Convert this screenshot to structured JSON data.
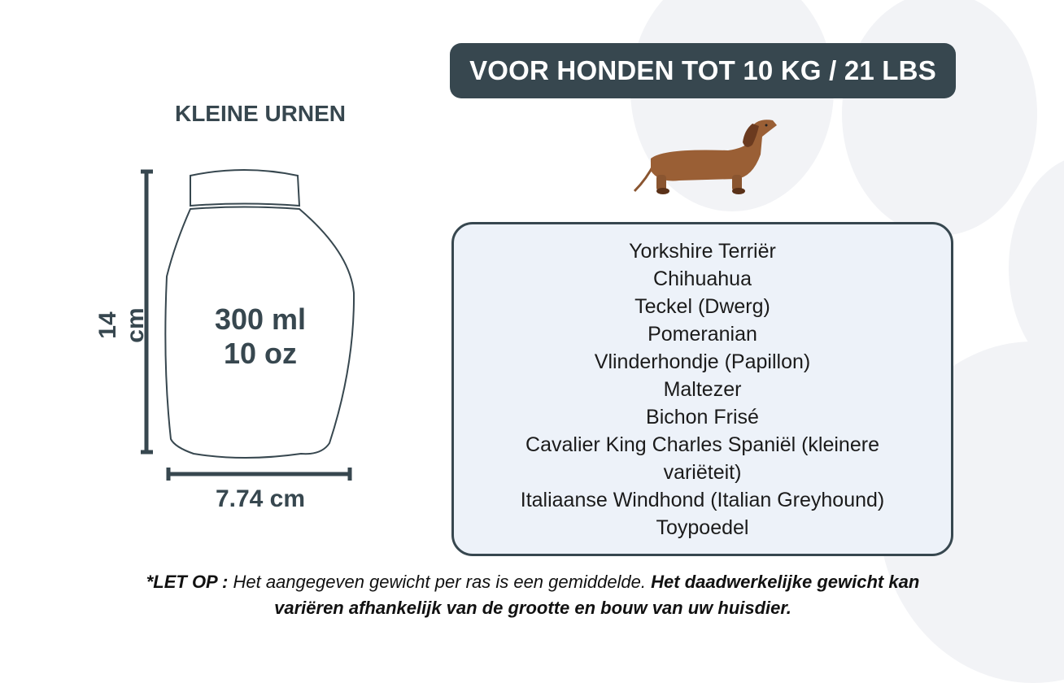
{
  "header": {
    "title": "VOOR HONDEN TOT 10 KG / 21 LBS"
  },
  "urn": {
    "title": "KLEINE URNEN",
    "volume_ml": "300 ml",
    "volume_oz": "10 oz",
    "height": "14 cm",
    "width": "7.74 cm"
  },
  "breeds": [
    "Yorkshire Terriër",
    "Chihuahua",
    "Teckel (Dwerg)",
    "Pomeranian",
    "Vlinderhondje (Papillon)",
    "Maltezer",
    "Bichon Frisé",
    "Cavalier King Charles Spaniël (kleinere variëteit)",
    "Italiaanse Windhond (Italian Greyhound)",
    "Toypoedel"
  ],
  "note": {
    "label": "*LET OP :",
    "text": " Het aangegeven gewicht per ras is een gemiddelde. ",
    "bold_text": "Het daadwerkelijke gewicht kan variëren afhankelijk van de grootte en bouw van uw huisdier."
  },
  "colors": {
    "primary": "#37474f",
    "box_fill": "#edf2f9",
    "dog_brown": "#9a5f35"
  },
  "icons": {
    "dog": "dachshund-illustration",
    "background": "paw-print-watermark"
  }
}
